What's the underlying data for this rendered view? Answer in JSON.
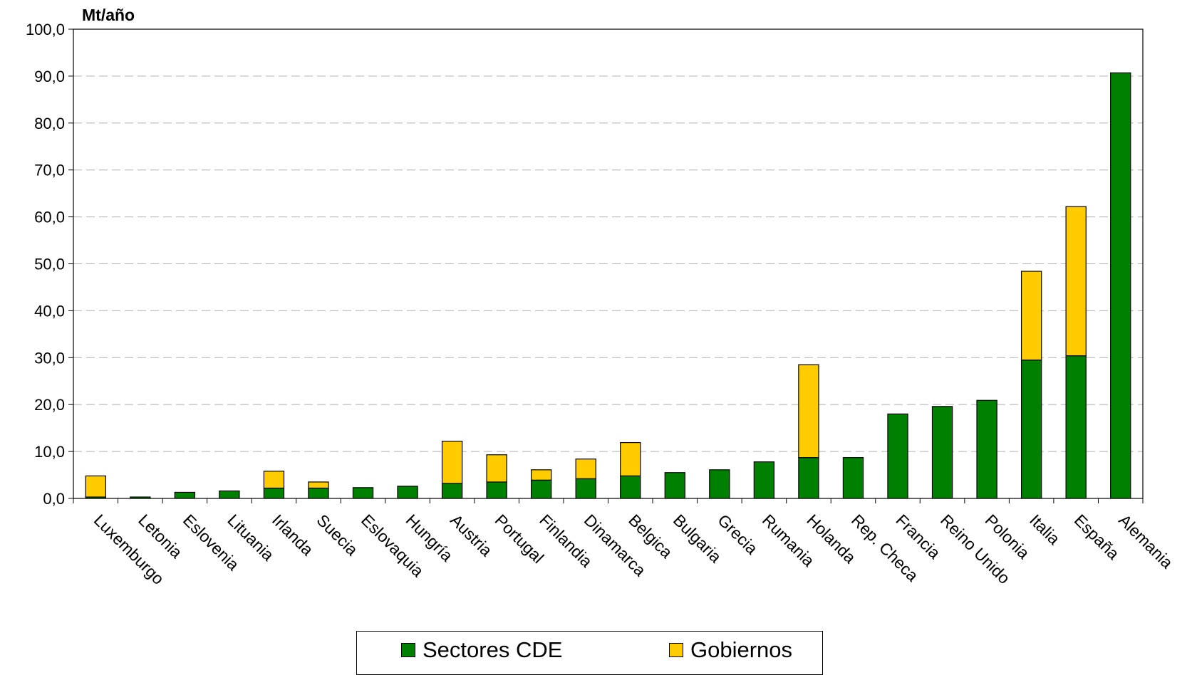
{
  "chart_data": {
    "type": "bar",
    "stacked": true,
    "ylabel": "Mt/año",
    "ylim": [
      0,
      100
    ],
    "y_ticks": [
      "0,0",
      "10,0",
      "20,0",
      "30,0",
      "40,0",
      "50,0",
      "60,0",
      "70,0",
      "80,0",
      "90,0",
      "100,0"
    ],
    "grid": true,
    "legend_position": "bottom",
    "categories": [
      "Luxemburgo",
      "Letonia",
      "Eslovenia",
      "Lituania",
      "Irlanda",
      "Suecia",
      "Eslovaquia",
      "Hungría",
      "Austria",
      "Portugal",
      "Finlandia",
      "Dinamarca",
      "Belgica",
      "Bulgaria",
      "Grecia",
      "Rumania",
      "Holanda",
      "Rep. Checa",
      "Francia",
      "Reino Unido",
      "Polonia",
      "Italia",
      "España",
      "Alemania"
    ],
    "series": [
      {
        "name": "Sectores CDE",
        "color": "#008000",
        "values": [
          0.3,
          0.3,
          1.3,
          1.6,
          2.2,
          2.2,
          2.3,
          2.6,
          3.2,
          3.5,
          3.9,
          4.2,
          4.8,
          5.5,
          6.1,
          7.8,
          8.7,
          8.7,
          18.0,
          19.6,
          20.9,
          29.5,
          30.4,
          90.7
        ]
      },
      {
        "name": "Gobiernos",
        "color": "#FFCC00",
        "values": [
          4.5,
          0,
          0,
          0,
          3.6,
          1.3,
          0,
          0,
          9.0,
          5.8,
          2.2,
          4.2,
          7.1,
          0,
          0,
          0,
          19.8,
          0,
          0,
          0,
          0,
          18.9,
          31.8,
          0
        ]
      }
    ]
  }
}
